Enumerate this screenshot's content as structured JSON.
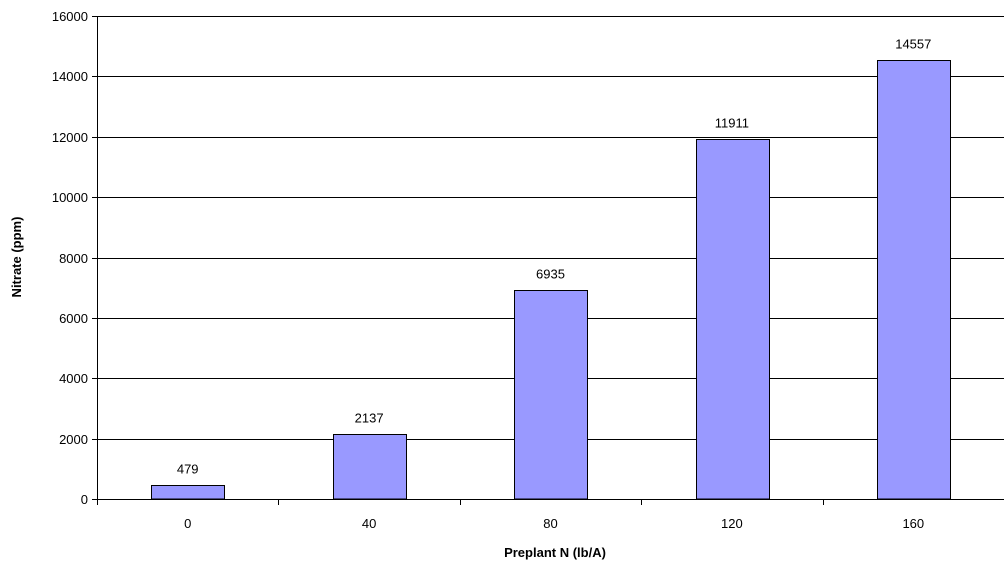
{
  "chart_data": {
    "type": "bar",
    "title": "",
    "xlabel": "Preplant N (lb/A)",
    "ylabel": "Nitrate (ppm)",
    "categories": [
      "0",
      "40",
      "80",
      "120",
      "160"
    ],
    "values": [
      479,
      2137,
      6935,
      11911,
      14557
    ],
    "data_labels": [
      "479",
      "2137",
      "6935",
      "11911",
      "14557"
    ],
    "yticks": [
      0,
      2000,
      4000,
      6000,
      8000,
      10000,
      12000,
      14000,
      16000
    ],
    "ylim": [
      0,
      16000
    ],
    "grid": true,
    "legend": "none",
    "bar_color": "#9999ff",
    "bar_edge_color": "#000000",
    "grid_color": "#000000"
  }
}
